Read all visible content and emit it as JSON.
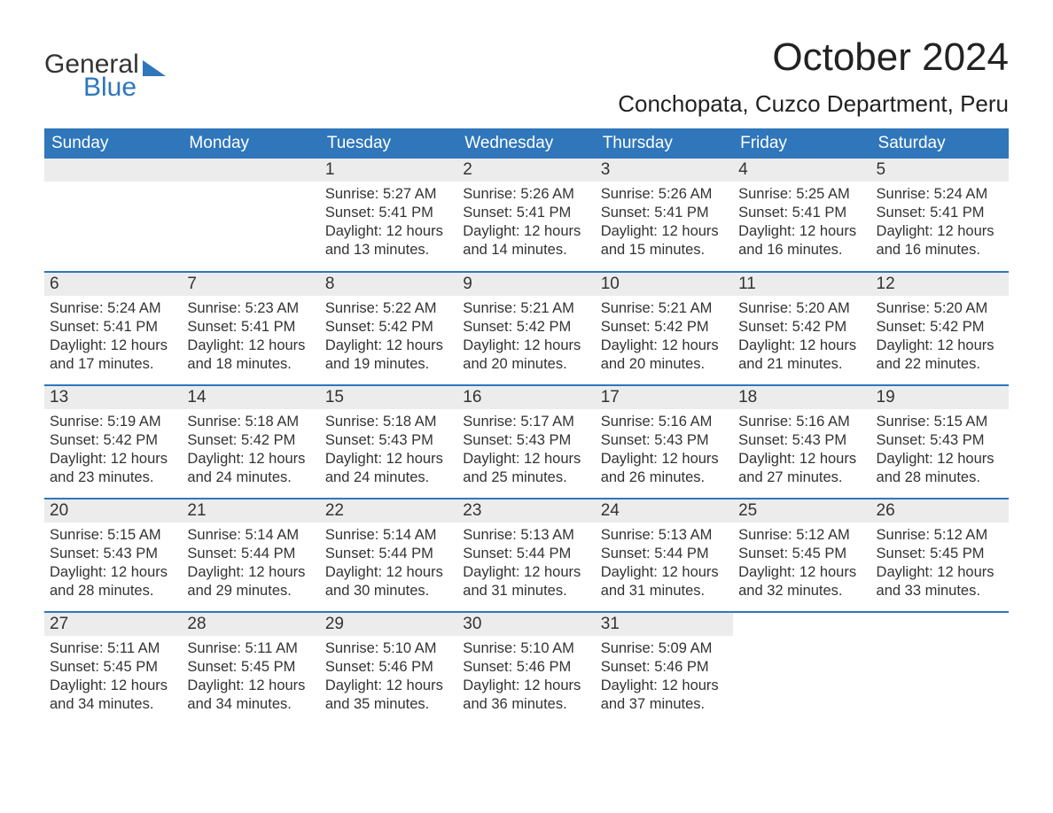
{
  "brand": {
    "line1": "General",
    "line2": "Blue",
    "accent_color": "#2f76bb"
  },
  "title": "October 2024",
  "location": "Conchopata, Cuzco Department, Peru",
  "colors": {
    "header_bg": "#2f76bb",
    "header_text": "#ffffff",
    "daynum_bg": "#ececec",
    "row_divider": "#2f76bb",
    "body_text": "#333333",
    "page_bg": "#ffffff"
  },
  "typography": {
    "title_fontsize": 44,
    "location_fontsize": 26,
    "dayheader_fontsize": 19,
    "daynum_fontsize": 19,
    "body_fontsize": 16.5,
    "font_family": "Arial"
  },
  "layout": {
    "columns": 7,
    "rows": 5,
    "first_day_column_index": 2,
    "days_in_month": 31
  },
  "day_headers": [
    "Sunday",
    "Monday",
    "Tuesday",
    "Wednesday",
    "Thursday",
    "Friday",
    "Saturday"
  ],
  "labels": {
    "sunrise": "Sunrise:",
    "sunset": "Sunset:",
    "daylight": "Daylight:"
  },
  "days": [
    {
      "n": 1,
      "sunrise": "5:27 AM",
      "sunset": "5:41 PM",
      "daylight": "12 hours and 13 minutes."
    },
    {
      "n": 2,
      "sunrise": "5:26 AM",
      "sunset": "5:41 PM",
      "daylight": "12 hours and 14 minutes."
    },
    {
      "n": 3,
      "sunrise": "5:26 AM",
      "sunset": "5:41 PM",
      "daylight": "12 hours and 15 minutes."
    },
    {
      "n": 4,
      "sunrise": "5:25 AM",
      "sunset": "5:41 PM",
      "daylight": "12 hours and 16 minutes."
    },
    {
      "n": 5,
      "sunrise": "5:24 AM",
      "sunset": "5:41 PM",
      "daylight": "12 hours and 16 minutes."
    },
    {
      "n": 6,
      "sunrise": "5:24 AM",
      "sunset": "5:41 PM",
      "daylight": "12 hours and 17 minutes."
    },
    {
      "n": 7,
      "sunrise": "5:23 AM",
      "sunset": "5:41 PM",
      "daylight": "12 hours and 18 minutes."
    },
    {
      "n": 8,
      "sunrise": "5:22 AM",
      "sunset": "5:42 PM",
      "daylight": "12 hours and 19 minutes."
    },
    {
      "n": 9,
      "sunrise": "5:21 AM",
      "sunset": "5:42 PM",
      "daylight": "12 hours and 20 minutes."
    },
    {
      "n": 10,
      "sunrise": "5:21 AM",
      "sunset": "5:42 PM",
      "daylight": "12 hours and 20 minutes."
    },
    {
      "n": 11,
      "sunrise": "5:20 AM",
      "sunset": "5:42 PM",
      "daylight": "12 hours and 21 minutes."
    },
    {
      "n": 12,
      "sunrise": "5:20 AM",
      "sunset": "5:42 PM",
      "daylight": "12 hours and 22 minutes."
    },
    {
      "n": 13,
      "sunrise": "5:19 AM",
      "sunset": "5:42 PM",
      "daylight": "12 hours and 23 minutes."
    },
    {
      "n": 14,
      "sunrise": "5:18 AM",
      "sunset": "5:42 PM",
      "daylight": "12 hours and 24 minutes."
    },
    {
      "n": 15,
      "sunrise": "5:18 AM",
      "sunset": "5:43 PM",
      "daylight": "12 hours and 24 minutes."
    },
    {
      "n": 16,
      "sunrise": "5:17 AM",
      "sunset": "5:43 PM",
      "daylight": "12 hours and 25 minutes."
    },
    {
      "n": 17,
      "sunrise": "5:16 AM",
      "sunset": "5:43 PM",
      "daylight": "12 hours and 26 minutes."
    },
    {
      "n": 18,
      "sunrise": "5:16 AM",
      "sunset": "5:43 PM",
      "daylight": "12 hours and 27 minutes."
    },
    {
      "n": 19,
      "sunrise": "5:15 AM",
      "sunset": "5:43 PM",
      "daylight": "12 hours and 28 minutes."
    },
    {
      "n": 20,
      "sunrise": "5:15 AM",
      "sunset": "5:43 PM",
      "daylight": "12 hours and 28 minutes."
    },
    {
      "n": 21,
      "sunrise": "5:14 AM",
      "sunset": "5:44 PM",
      "daylight": "12 hours and 29 minutes."
    },
    {
      "n": 22,
      "sunrise": "5:14 AM",
      "sunset": "5:44 PM",
      "daylight": "12 hours and 30 minutes."
    },
    {
      "n": 23,
      "sunrise": "5:13 AM",
      "sunset": "5:44 PM",
      "daylight": "12 hours and 31 minutes."
    },
    {
      "n": 24,
      "sunrise": "5:13 AM",
      "sunset": "5:44 PM",
      "daylight": "12 hours and 31 minutes."
    },
    {
      "n": 25,
      "sunrise": "5:12 AM",
      "sunset": "5:45 PM",
      "daylight": "12 hours and 32 minutes."
    },
    {
      "n": 26,
      "sunrise": "5:12 AM",
      "sunset": "5:45 PM",
      "daylight": "12 hours and 33 minutes."
    },
    {
      "n": 27,
      "sunrise": "5:11 AM",
      "sunset": "5:45 PM",
      "daylight": "12 hours and 34 minutes."
    },
    {
      "n": 28,
      "sunrise": "5:11 AM",
      "sunset": "5:45 PM",
      "daylight": "12 hours and 34 minutes."
    },
    {
      "n": 29,
      "sunrise": "5:10 AM",
      "sunset": "5:46 PM",
      "daylight": "12 hours and 35 minutes."
    },
    {
      "n": 30,
      "sunrise": "5:10 AM",
      "sunset": "5:46 PM",
      "daylight": "12 hours and 36 minutes."
    },
    {
      "n": 31,
      "sunrise": "5:09 AM",
      "sunset": "5:46 PM",
      "daylight": "12 hours and 37 minutes."
    }
  ]
}
